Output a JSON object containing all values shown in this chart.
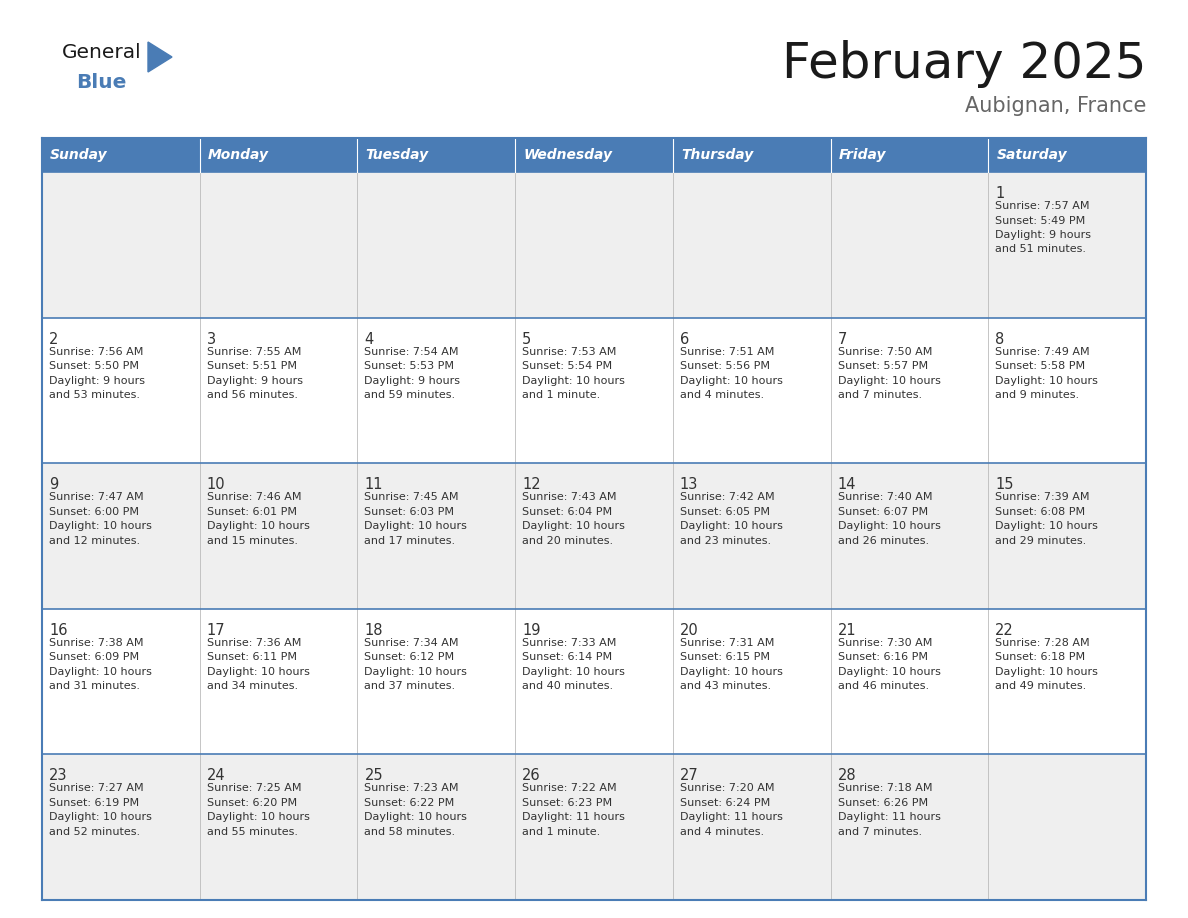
{
  "title": "February 2025",
  "subtitle": "Aubignan, France",
  "days_of_week": [
    "Sunday",
    "Monday",
    "Tuesday",
    "Wednesday",
    "Thursday",
    "Friday",
    "Saturday"
  ],
  "header_bg": "#4a7cb5",
  "header_text": "#ffffff",
  "row_bg_odd": "#efefef",
  "row_bg_even": "#ffffff",
  "cell_border": "#4a7cb5",
  "day_number_color": "#333333",
  "info_text_color": "#333333",
  "logo_general_color": "#1a1a1a",
  "logo_blue_color": "#4a7cb5",
  "triangle_color": "#4a7cb5",
  "subtitle_color": "#666666",
  "calendar_data": [
    [
      null,
      null,
      null,
      null,
      null,
      null,
      {
        "day": "1",
        "sunrise": "7:57 AM",
        "sunset": "5:49 PM",
        "daylight_line1": "Daylight: 9 hours",
        "daylight_line2": "and 51 minutes."
      }
    ],
    [
      {
        "day": "2",
        "sunrise": "7:56 AM",
        "sunset": "5:50 PM",
        "daylight_line1": "Daylight: 9 hours",
        "daylight_line2": "and 53 minutes."
      },
      {
        "day": "3",
        "sunrise": "7:55 AM",
        "sunset": "5:51 PM",
        "daylight_line1": "Daylight: 9 hours",
        "daylight_line2": "and 56 minutes."
      },
      {
        "day": "4",
        "sunrise": "7:54 AM",
        "sunset": "5:53 PM",
        "daylight_line1": "Daylight: 9 hours",
        "daylight_line2": "and 59 minutes."
      },
      {
        "day": "5",
        "sunrise": "7:53 AM",
        "sunset": "5:54 PM",
        "daylight_line1": "Daylight: 10 hours",
        "daylight_line2": "and 1 minute."
      },
      {
        "day": "6",
        "sunrise": "7:51 AM",
        "sunset": "5:56 PM",
        "daylight_line1": "Daylight: 10 hours",
        "daylight_line2": "and 4 minutes."
      },
      {
        "day": "7",
        "sunrise": "7:50 AM",
        "sunset": "5:57 PM",
        "daylight_line1": "Daylight: 10 hours",
        "daylight_line2": "and 7 minutes."
      },
      {
        "day": "8",
        "sunrise": "7:49 AM",
        "sunset": "5:58 PM",
        "daylight_line1": "Daylight: 10 hours",
        "daylight_line2": "and 9 minutes."
      }
    ],
    [
      {
        "day": "9",
        "sunrise": "7:47 AM",
        "sunset": "6:00 PM",
        "daylight_line1": "Daylight: 10 hours",
        "daylight_line2": "and 12 minutes."
      },
      {
        "day": "10",
        "sunrise": "7:46 AM",
        "sunset": "6:01 PM",
        "daylight_line1": "Daylight: 10 hours",
        "daylight_line2": "and 15 minutes."
      },
      {
        "day": "11",
        "sunrise": "7:45 AM",
        "sunset": "6:03 PM",
        "daylight_line1": "Daylight: 10 hours",
        "daylight_line2": "and 17 minutes."
      },
      {
        "day": "12",
        "sunrise": "7:43 AM",
        "sunset": "6:04 PM",
        "daylight_line1": "Daylight: 10 hours",
        "daylight_line2": "and 20 minutes."
      },
      {
        "day": "13",
        "sunrise": "7:42 AM",
        "sunset": "6:05 PM",
        "daylight_line1": "Daylight: 10 hours",
        "daylight_line2": "and 23 minutes."
      },
      {
        "day": "14",
        "sunrise": "7:40 AM",
        "sunset": "6:07 PM",
        "daylight_line1": "Daylight: 10 hours",
        "daylight_line2": "and 26 minutes."
      },
      {
        "day": "15",
        "sunrise": "7:39 AM",
        "sunset": "6:08 PM",
        "daylight_line1": "Daylight: 10 hours",
        "daylight_line2": "and 29 minutes."
      }
    ],
    [
      {
        "day": "16",
        "sunrise": "7:38 AM",
        "sunset": "6:09 PM",
        "daylight_line1": "Daylight: 10 hours",
        "daylight_line2": "and 31 minutes."
      },
      {
        "day": "17",
        "sunrise": "7:36 AM",
        "sunset": "6:11 PM",
        "daylight_line1": "Daylight: 10 hours",
        "daylight_line2": "and 34 minutes."
      },
      {
        "day": "18",
        "sunrise": "7:34 AM",
        "sunset": "6:12 PM",
        "daylight_line1": "Daylight: 10 hours",
        "daylight_line2": "and 37 minutes."
      },
      {
        "day": "19",
        "sunrise": "7:33 AM",
        "sunset": "6:14 PM",
        "daylight_line1": "Daylight: 10 hours",
        "daylight_line2": "and 40 minutes."
      },
      {
        "day": "20",
        "sunrise": "7:31 AM",
        "sunset": "6:15 PM",
        "daylight_line1": "Daylight: 10 hours",
        "daylight_line2": "and 43 minutes."
      },
      {
        "day": "21",
        "sunrise": "7:30 AM",
        "sunset": "6:16 PM",
        "daylight_line1": "Daylight: 10 hours",
        "daylight_line2": "and 46 minutes."
      },
      {
        "day": "22",
        "sunrise": "7:28 AM",
        "sunset": "6:18 PM",
        "daylight_line1": "Daylight: 10 hours",
        "daylight_line2": "and 49 minutes."
      }
    ],
    [
      {
        "day": "23",
        "sunrise": "7:27 AM",
        "sunset": "6:19 PM",
        "daylight_line1": "Daylight: 10 hours",
        "daylight_line2": "and 52 minutes."
      },
      {
        "day": "24",
        "sunrise": "7:25 AM",
        "sunset": "6:20 PM",
        "daylight_line1": "Daylight: 10 hours",
        "daylight_line2": "and 55 minutes."
      },
      {
        "day": "25",
        "sunrise": "7:23 AM",
        "sunset": "6:22 PM",
        "daylight_line1": "Daylight: 10 hours",
        "daylight_line2": "and 58 minutes."
      },
      {
        "day": "26",
        "sunrise": "7:22 AM",
        "sunset": "6:23 PM",
        "daylight_line1": "Daylight: 11 hours",
        "daylight_line2": "and 1 minute."
      },
      {
        "day": "27",
        "sunrise": "7:20 AM",
        "sunset": "6:24 PM",
        "daylight_line1": "Daylight: 11 hours",
        "daylight_line2": "and 4 minutes."
      },
      {
        "day": "28",
        "sunrise": "7:18 AM",
        "sunset": "6:26 PM",
        "daylight_line1": "Daylight: 11 hours",
        "daylight_line2": "and 7 minutes."
      },
      null
    ]
  ]
}
